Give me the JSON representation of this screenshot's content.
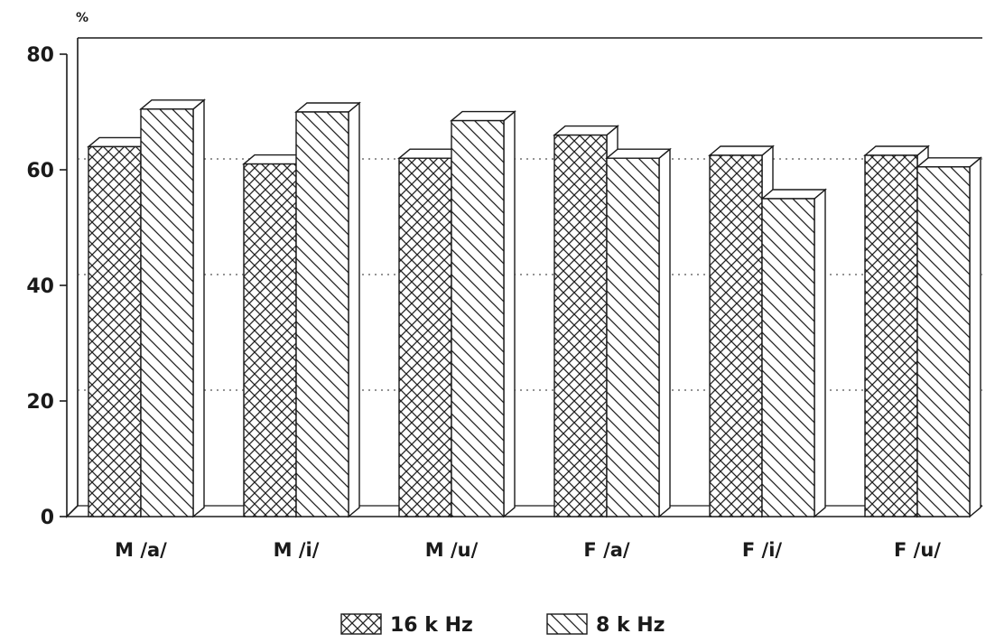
{
  "chart_data": {
    "type": "bar",
    "title": "",
    "ylabel": "%",
    "xlabel": "",
    "ylim": [
      0,
      80
    ],
    "yticks": [
      0,
      20,
      40,
      60,
      80
    ],
    "grid": true,
    "legend_position": "bottom",
    "categories": [
      "M /a/",
      "M /i/",
      "M /u/",
      "F /a/",
      "F /i/",
      "F /u/"
    ],
    "series": [
      {
        "name": "16 k Hz",
        "pattern": "crosshatch",
        "values": [
          64,
          61,
          62,
          66,
          62.5,
          62.5
        ]
      },
      {
        "name": "8 k Hz",
        "pattern": "diagonal",
        "values": [
          70.5,
          70,
          68.5,
          62,
          55,
          60.5
        ]
      }
    ],
    "colors": {
      "ink": "#1a1a1a",
      "background": "#ffffff"
    }
  }
}
